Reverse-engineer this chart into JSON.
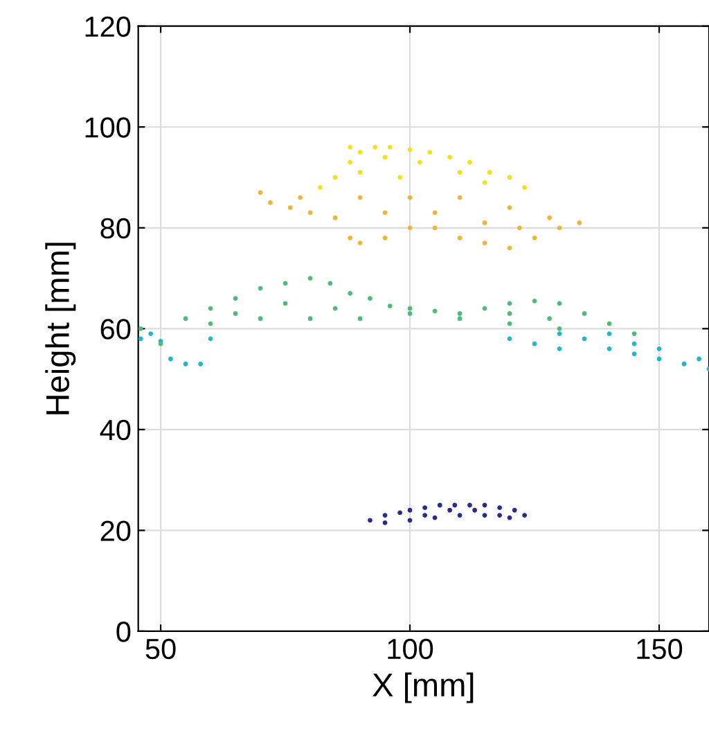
{
  "chart_data": {
    "type": "scatter",
    "xlabel": "X [mm]",
    "ylabel": "Height [mm]",
    "xlim": [
      45.5,
      160
    ],
    "ylim": [
      0,
      120
    ],
    "xticks": [
      50,
      100,
      150
    ],
    "yticks": [
      0,
      20,
      40,
      60,
      80,
      100,
      120
    ],
    "grid": true,
    "marker": "circle",
    "series": [
      {
        "color": "#2b2a8f",
        "x": [
          92,
          95,
          98,
          100,
          103,
          106,
          109,
          112,
          115,
          118,
          121,
          123,
          95,
          100,
          105,
          110,
          115,
          120,
          103,
          108,
          113,
          118
        ],
        "values": [
          22,
          23,
          23.5,
          24,
          24.5,
          25,
          25,
          25,
          25,
          24.5,
          24,
          23,
          21.5,
          22,
          22.5,
          23,
          23,
          22.5,
          23,
          24,
          24,
          23
        ]
      },
      {
        "color": "#1fb8c8",
        "x": [
          46,
          50,
          52,
          55,
          58,
          48,
          120,
          125,
          130,
          135,
          140,
          145,
          150,
          155,
          160,
          140,
          150,
          158,
          130,
          145,
          60
        ],
        "values": [
          58,
          57.5,
          54,
          53,
          53,
          59,
          58,
          57,
          59,
          58,
          56,
          55,
          54,
          53,
          52,
          59,
          56,
          54,
          56,
          57,
          58
        ]
      },
      {
        "color": "#4fba7a",
        "x": [
          46,
          55,
          60,
          65,
          70,
          75,
          80,
          84,
          88,
          92,
          96,
          100,
          105,
          110,
          115,
          120,
          125,
          130,
          135,
          140,
          145,
          50,
          60,
          70,
          80,
          90,
          100,
          110,
          120,
          130,
          65,
          75,
          85,
          120,
          128
        ],
        "values": [
          60,
          62,
          64,
          66,
          68,
          69,
          70,
          69,
          67,
          66,
          64.5,
          64,
          63.5,
          63,
          64,
          65,
          65.5,
          65,
          63,
          61,
          59,
          57,
          61,
          62,
          62,
          62,
          63,
          62,
          61,
          60,
          63,
          65,
          64,
          63,
          62
        ]
      },
      {
        "color": "#f0b43c",
        "x": [
          70,
          72,
          76,
          80,
          85,
          88,
          90,
          95,
          100,
          105,
          110,
          115,
          120,
          125,
          130,
          134,
          128,
          120,
          110,
          100,
          90,
          78,
          95,
          105,
          115,
          122
        ],
        "values": [
          87,
          85,
          84,
          83,
          82,
          78,
          77,
          78,
          80,
          80,
          78,
          77,
          76,
          78,
          80,
          81,
          82,
          84,
          86,
          86,
          86,
          86,
          83,
          83,
          81,
          80
        ]
      },
      {
        "color": "#f2e21e",
        "x": [
          82,
          85,
          88,
          90,
          93,
          96,
          100,
          104,
          108,
          112,
          116,
          120,
          123,
          88,
          95,
          102,
          110,
          90,
          98,
          115
        ],
        "values": [
          88,
          90,
          93,
          95,
          96,
          96,
          95.5,
          95,
          94,
          93,
          91,
          90,
          88,
          96,
          94,
          93,
          91,
          91,
          90,
          89
        ]
      }
    ]
  }
}
